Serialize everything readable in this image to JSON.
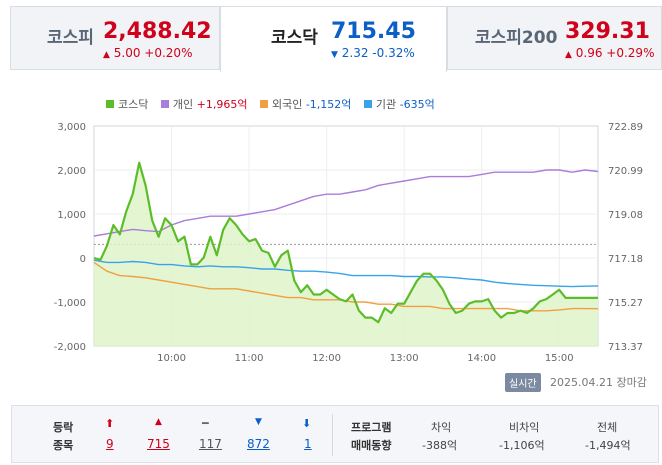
{
  "tabs": [
    {
      "name": "코스피",
      "value": "2,488.42",
      "arrow": "▲",
      "change": "5.00",
      "pct": "+0.20%",
      "dir": "up"
    },
    {
      "name": "코스닥",
      "value": "715.45",
      "arrow": "▼",
      "change": "2.32",
      "pct": "-0.32%",
      "dir": "down"
    },
    {
      "name": "코스피200",
      "value": "329.31",
      "arrow": "▲",
      "change": "0.96",
      "pct": "+0.29%",
      "dir": "up"
    }
  ],
  "legend": [
    {
      "label": "코스닥",
      "value": "",
      "color": "#5cbd2a",
      "valColor": ""
    },
    {
      "label": "개인",
      "value": "+1,965억",
      "color": "#a97ddb",
      "valColor": "#d0021b"
    },
    {
      "label": "외국인",
      "value": "-1,152억",
      "color": "#f0a040",
      "valColor": "#0b5fc7"
    },
    {
      "label": "기관",
      "value": "-635억",
      "color": "#38a3e8",
      "valColor": "#0b5fc7"
    }
  ],
  "footer": {
    "realtime": "실시간",
    "date": "2025.04.21 장마감"
  },
  "breadth": {
    "label_line1": "등락",
    "label_line2": "종목",
    "items": [
      {
        "icon": "⬆",
        "count": "9",
        "color": "#d0021b"
      },
      {
        "icon": "▲",
        "count": "715",
        "color": "#d0021b"
      },
      {
        "icon": "━",
        "count": "117",
        "color": "#666666"
      },
      {
        "icon": "▼",
        "count": "872",
        "color": "#0b5fc7"
      },
      {
        "icon": "⬇",
        "count": "1",
        "color": "#0b5fc7"
      }
    ]
  },
  "program": {
    "label_line1": "프로그램",
    "label_line2": "매매동향",
    "items": [
      {
        "label": "차익",
        "value": "-388억"
      },
      {
        "label": "비차익",
        "value": "-1,106억"
      },
      {
        "label": "전체",
        "value": "-1,494억"
      }
    ]
  },
  "chart_data": {
    "type": "line",
    "x_ticks": [
      "10:00",
      "11:00",
      "12:00",
      "13:00",
      "14:00",
      "15:00"
    ],
    "y_left_ticks": [
      "3,000",
      "2,000",
      "1,000",
      "0",
      "-1,000",
      "-2,000"
    ],
    "y_right_ticks": [
      "722.89",
      "720.99",
      "719.08",
      "717.18",
      "715.27",
      "713.37"
    ],
    "ylim_left": [
      -2000,
      3000
    ],
    "ylim_right": [
      713.37,
      722.89
    ],
    "prev_close": 717.77,
    "series": [
      {
        "name": "코스닥",
        "axis": "right",
        "color": "#5cbd2a",
        "fill": true,
        "x": [
          "09:00",
          "09:05",
          "09:10",
          "09:15",
          "09:20",
          "09:25",
          "09:30",
          "09:35",
          "09:40",
          "09:45",
          "09:50",
          "09:55",
          "10:00",
          "10:05",
          "10:10",
          "10:15",
          "10:20",
          "10:25",
          "10:30",
          "10:35",
          "10:40",
          "10:45",
          "10:50",
          "10:55",
          "11:00",
          "11:05",
          "11:10",
          "11:15",
          "11:20",
          "11:25",
          "11:30",
          "11:35",
          "11:40",
          "11:45",
          "11:50",
          "11:55",
          "12:00",
          "12:05",
          "12:10",
          "12:15",
          "12:20",
          "12:25",
          "12:30",
          "12:35",
          "12:40",
          "12:45",
          "12:50",
          "12:55",
          "13:00",
          "13:05",
          "13:10",
          "13:15",
          "13:20",
          "13:25",
          "13:30",
          "13:35",
          "13:40",
          "13:45",
          "13:50",
          "13:55",
          "14:00",
          "14:05",
          "14:10",
          "14:15",
          "14:20",
          "14:25",
          "14:30",
          "14:35",
          "14:40",
          "14:45",
          "14:50",
          "14:55",
          "15:00",
          "15:05",
          "15:10",
          "15:15",
          "15:20",
          "15:25",
          "15:30"
        ],
        "values": [
          717.18,
          717.1,
          717.7,
          718.6,
          718.2,
          719.2,
          719.95,
          721.3,
          720.3,
          718.8,
          718.1,
          718.9,
          718.6,
          717.9,
          718.1,
          716.9,
          716.9,
          717.2,
          718.1,
          717.3,
          718.4,
          718.9,
          718.6,
          718.2,
          717.9,
          718.0,
          717.5,
          717.4,
          716.8,
          717.3,
          717.5,
          716.2,
          715.7,
          716.0,
          715.6,
          715.6,
          715.8,
          715.6,
          715.4,
          715.3,
          715.6,
          714.9,
          714.6,
          714.6,
          714.4,
          715.0,
          714.8,
          715.2,
          715.2,
          715.7,
          716.2,
          716.5,
          716.5,
          716.2,
          715.8,
          715.2,
          714.8,
          714.9,
          715.2,
          715.3,
          715.3,
          715.4,
          714.9,
          714.6,
          714.8,
          714.8,
          714.9,
          714.8,
          715.0,
          715.3,
          715.4,
          715.6,
          715.8,
          715.45,
          715.45,
          715.45,
          715.45,
          715.45,
          715.45
        ]
      },
      {
        "name": "개인",
        "axis": "left",
        "color": "#a97ddb",
        "fill": false,
        "x": [
          "09:00",
          "09:10",
          "09:20",
          "09:30",
          "09:40",
          "09:50",
          "10:00",
          "10:10",
          "10:20",
          "10:30",
          "10:40",
          "10:50",
          "11:00",
          "11:10",
          "11:20",
          "11:30",
          "11:40",
          "11:50",
          "12:00",
          "12:10",
          "12:20",
          "12:30",
          "12:40",
          "12:50",
          "13:00",
          "13:10",
          "13:20",
          "13:30",
          "13:40",
          "13:50",
          "14:00",
          "14:10",
          "14:20",
          "14:30",
          "14:40",
          "14:50",
          "15:00",
          "15:10",
          "15:20",
          "15:30"
        ],
        "values": [
          500,
          550,
          600,
          650,
          620,
          600,
          750,
          850,
          900,
          950,
          950,
          950,
          1000,
          1050,
          1100,
          1200,
          1300,
          1400,
          1450,
          1450,
          1500,
          1550,
          1650,
          1700,
          1750,
          1800,
          1850,
          1850,
          1850,
          1850,
          1900,
          1950,
          1950,
          1950,
          1950,
          2000,
          2000,
          1950,
          2000,
          1965
        ]
      },
      {
        "name": "외국인",
        "axis": "left",
        "color": "#f0a040",
        "fill": false,
        "x": [
          "09:00",
          "09:10",
          "09:20",
          "09:30",
          "09:40",
          "09:50",
          "10:00",
          "10:10",
          "10:20",
          "10:30",
          "10:40",
          "10:50",
          "11:00",
          "11:10",
          "11:20",
          "11:30",
          "11:40",
          "11:50",
          "12:00",
          "12:10",
          "12:20",
          "12:30",
          "12:40",
          "12:50",
          "13:00",
          "13:10",
          "13:20",
          "13:30",
          "13:40",
          "13:50",
          "14:00",
          "14:10",
          "14:20",
          "14:30",
          "14:40",
          "14:50",
          "15:00",
          "15:10",
          "15:20",
          "15:30"
        ],
        "values": [
          -100,
          -300,
          -400,
          -420,
          -450,
          -500,
          -550,
          -600,
          -650,
          -700,
          -700,
          -700,
          -750,
          -800,
          -850,
          -900,
          -900,
          -950,
          -950,
          -950,
          -1000,
          -1000,
          -1050,
          -1050,
          -1100,
          -1100,
          -1100,
          -1150,
          -1150,
          -1150,
          -1150,
          -1150,
          -1150,
          -1200,
          -1200,
          -1200,
          -1180,
          -1150,
          -1150,
          -1152
        ]
      },
      {
        "name": "기관",
        "axis": "left",
        "color": "#38a3e8",
        "fill": false,
        "x": [
          "09:00",
          "09:10",
          "09:20",
          "09:30",
          "09:40",
          "09:50",
          "10:00",
          "10:10",
          "10:20",
          "10:30",
          "10:40",
          "10:50",
          "11:00",
          "11:10",
          "11:20",
          "11:30",
          "11:40",
          "11:50",
          "12:00",
          "12:10",
          "12:20",
          "12:30",
          "12:40",
          "12:50",
          "13:00",
          "13:10",
          "13:20",
          "13:30",
          "13:40",
          "13:50",
          "14:00",
          "14:10",
          "14:20",
          "14:30",
          "14:40",
          "14:50",
          "15:00",
          "15:10",
          "15:20",
          "15:30"
        ],
        "values": [
          -50,
          -100,
          -100,
          -80,
          -100,
          -150,
          -150,
          -180,
          -200,
          -180,
          -200,
          -200,
          -220,
          -250,
          -250,
          -280,
          -300,
          -300,
          -320,
          -350,
          -400,
          -400,
          -400,
          -400,
          -420,
          -420,
          -430,
          -430,
          -450,
          -480,
          -500,
          -550,
          -580,
          -600,
          -620,
          -630,
          -640,
          -650,
          -640,
          -635
        ]
      }
    ]
  }
}
